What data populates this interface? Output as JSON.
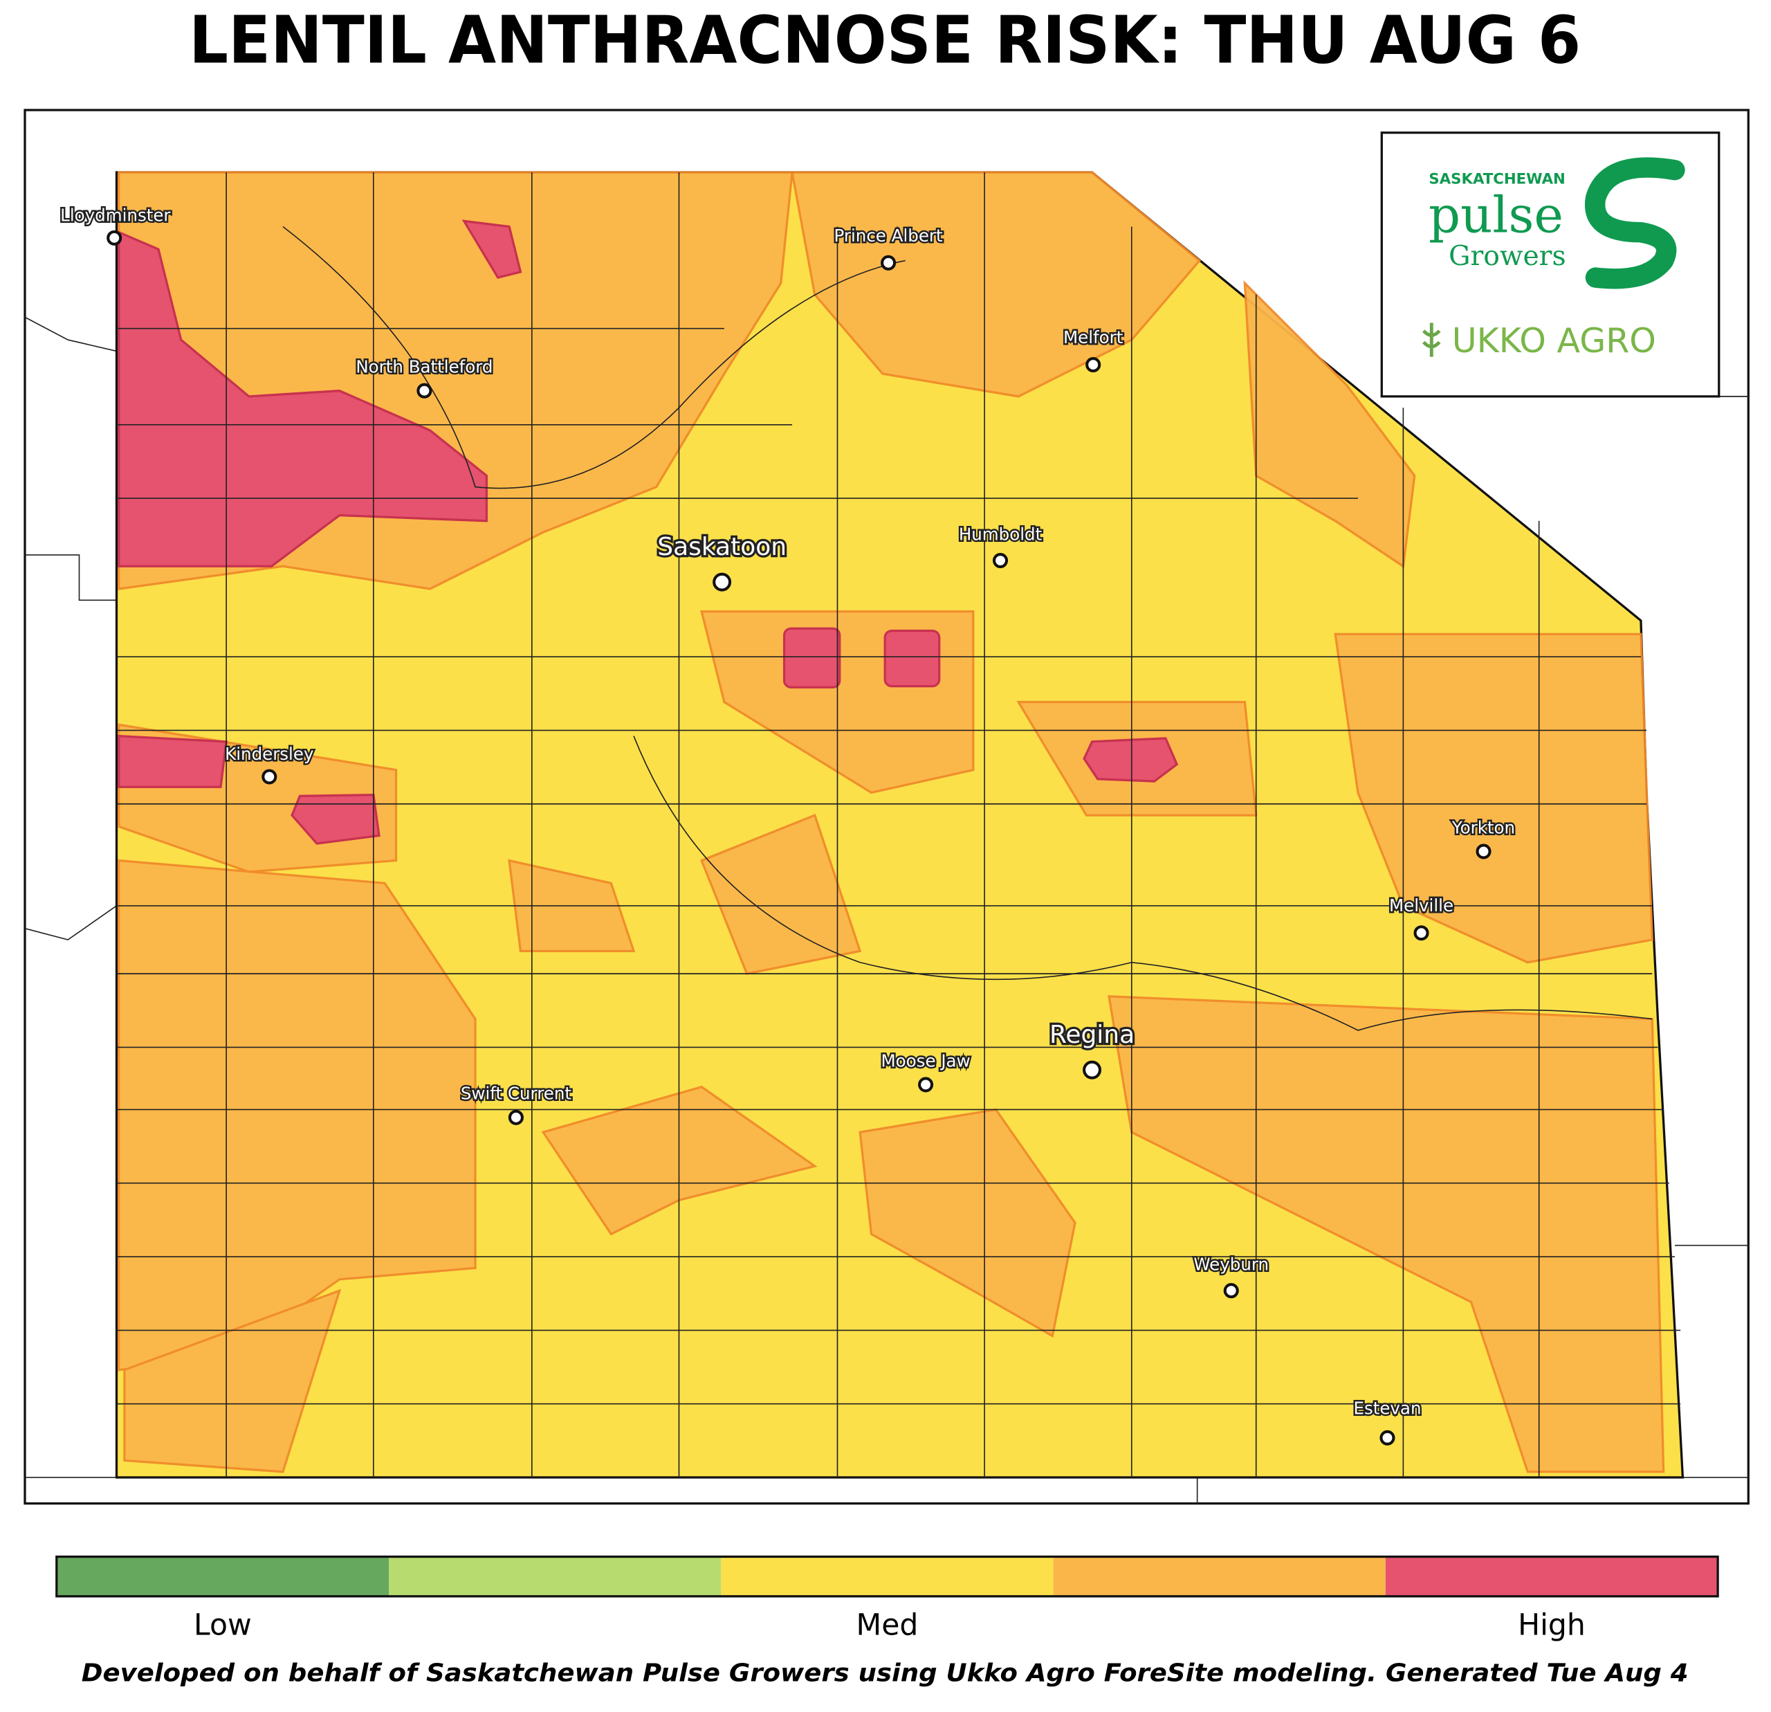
{
  "title": "LENTIL ANTHRACNOSE RISK: THU AUG 6",
  "logo": {
    "line1": "SASKATCHEWAN",
    "line2": "pulse",
    "line3": "Growers",
    "partner": "UKKO AGRO"
  },
  "cities": [
    {
      "name": "Lloydminster"
    },
    {
      "name": "Prince Albert"
    },
    {
      "name": "Melfort"
    },
    {
      "name": "North Battleford"
    },
    {
      "name": "Saskatoon"
    },
    {
      "name": "Humboldt"
    },
    {
      "name": "Kindersley"
    },
    {
      "name": "Yorkton"
    },
    {
      "name": "Melville"
    },
    {
      "name": "Regina"
    },
    {
      "name": "Moose Jaw"
    },
    {
      "name": "Swift Current"
    },
    {
      "name": "Weyburn"
    },
    {
      "name": "Estevan"
    }
  ],
  "legend": {
    "colors": [
      "#66a85e",
      "#b7db6e",
      "#fbe04a",
      "#fbb64a",
      "#e5536f"
    ],
    "labels": [
      "Low",
      "Med",
      "High"
    ]
  },
  "footer": "Developed on behalf of Saskatchewan Pulse Growers using Ukko Agro ForeSite modeling. Generated Tue Aug 4"
}
